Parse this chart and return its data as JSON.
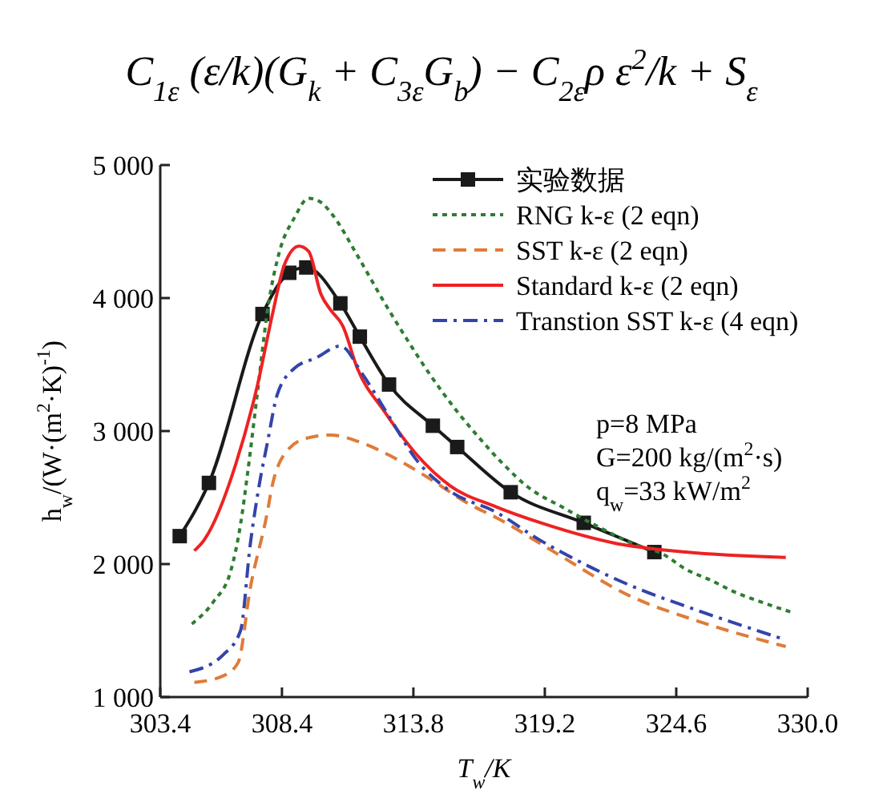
{
  "chart_data": {
    "type": "line",
    "title": "C$_{1ε}$ (ε/k)(G$_{k}$ + C$_{3ε}$G$_{b}$) − C$_{2ε}$ρ ε$^{2}$/k + S$_{ε}$",
    "xlabel": "T$_{w}$/K",
    "ylabel": "h$_{w}$/(W·(m$^{2}$·K)$^{-1}$)",
    "xlim": [
      303.4,
      330.0
    ],
    "xticks": [
      303.4,
      308.4,
      313.8,
      319.2,
      324.6,
      {
        "value": 330.0,
        "label": "330.0"
      }
    ],
    "ylim": [
      1000,
      5000
    ],
    "yticks": [
      {
        "value": 1000,
        "label": "1 000"
      },
      {
        "value": 2000,
        "label": "2 000"
      },
      {
        "value": 3000,
        "label": "3 000"
      },
      {
        "value": 4000,
        "label": "4 000"
      },
      {
        "value": 5000,
        "label": "5 000"
      }
    ],
    "grid": false,
    "legend": "top right",
    "annotations": [
      "p=8 MPa",
      "G=200 kg/(m$^{2}$·s)",
      "q$_{w}$=33 kW/m$^{2}$"
    ],
    "series": [
      {
        "name": "实验数据",
        "color": "#1a1a1a",
        "marker": "square",
        "line_style": "solid",
        "x": [
          304.2,
          305.4,
          307.6,
          308.7,
          309.4,
          310.8,
          311.6,
          312.8,
          314.6,
          315.6,
          317.8,
          320.8,
          323.7
        ],
        "values": [
          2210,
          2610,
          3880,
          4190,
          4230,
          3960,
          3710,
          3350,
          3040,
          2880,
          2540,
          2310,
          2090
        ]
      },
      {
        "name": "RNG k-ε (2 eqn)",
        "color": "#2e7d32",
        "marker": "none",
        "line_style": "dotted",
        "x": [
          304.7,
          305.6,
          306.3,
          306.7,
          307.0,
          307.4,
          307.8,
          308.3,
          308.9,
          309.5,
          310.0,
          310.5,
          311.5,
          312.5,
          313.5,
          314.5,
          315.5,
          316.5,
          317.5,
          318.5,
          320.0,
          321.5,
          323.0,
          324.0,
          325.0,
          326.0,
          327.0,
          328.0,
          329.3
        ],
        "values": [
          1550,
          1720,
          1950,
          2300,
          2700,
          3300,
          3900,
          4350,
          4600,
          4750,
          4720,
          4620,
          4320,
          4000,
          3700,
          3420,
          3170,
          2950,
          2750,
          2580,
          2420,
          2270,
          2140,
          2080,
          1960,
          1880,
          1790,
          1720,
          1640
        ]
      },
      {
        "name": "SST k-ε (2 eqn)",
        "color": "#e07b39",
        "marker": "none",
        "line_style": "dashed",
        "x": [
          304.8,
          306.0,
          306.6,
          307.1,
          307.8,
          308.0,
          308.7,
          309.5,
          310.4,
          311.7,
          313.1,
          314.4,
          316.1,
          317.2,
          319.5,
          322.7,
          325.5,
          329.1
        ],
        "values": [
          1110,
          1160,
          1260,
          1820,
          2390,
          2590,
          2870,
          2950,
          2970,
          2910,
          2790,
          2650,
          2450,
          2350,
          2100,
          1760,
          1570,
          1380
        ]
      },
      {
        "name": "Standard k-ε (2 eqn)",
        "color": "#ee2222",
        "marker": "none",
        "line_style": "solid",
        "x": [
          304.8,
          305.2,
          306.5,
          307.4,
          308.0,
          308.5,
          309.1,
          309.5,
          310.0,
          310.4,
          310.9,
          311.5,
          312.6,
          313.9,
          315.3,
          317.2,
          319.2,
          322.0,
          325.0,
          329.1
        ],
        "values": [
          2100,
          2180,
          2750,
          3350,
          3870,
          4250,
          4390,
          4350,
          4030,
          3910,
          3790,
          3470,
          3150,
          2830,
          2590,
          2430,
          2300,
          2160,
          2090,
          2050
        ]
      },
      {
        "name": "Transtion SST k-ε (4 eqn)",
        "color": "#3344aa",
        "marker": "none",
        "line_style": "dashdot",
        "x": [
          304.6,
          306.0,
          306.7,
          307.1,
          307.5,
          307.8,
          308.2,
          308.9,
          309.8,
          310.8,
          311.7,
          312.8,
          313.9,
          315.3,
          317.2,
          319.0,
          320.5,
          322.7,
          325.5,
          329.1
        ],
        "values": [
          1190,
          1320,
          1500,
          2150,
          2630,
          2910,
          3270,
          3470,
          3550,
          3640,
          3430,
          3110,
          2790,
          2550,
          2390,
          2180,
          2030,
          1840,
          1650,
          1430
        ]
      }
    ]
  }
}
